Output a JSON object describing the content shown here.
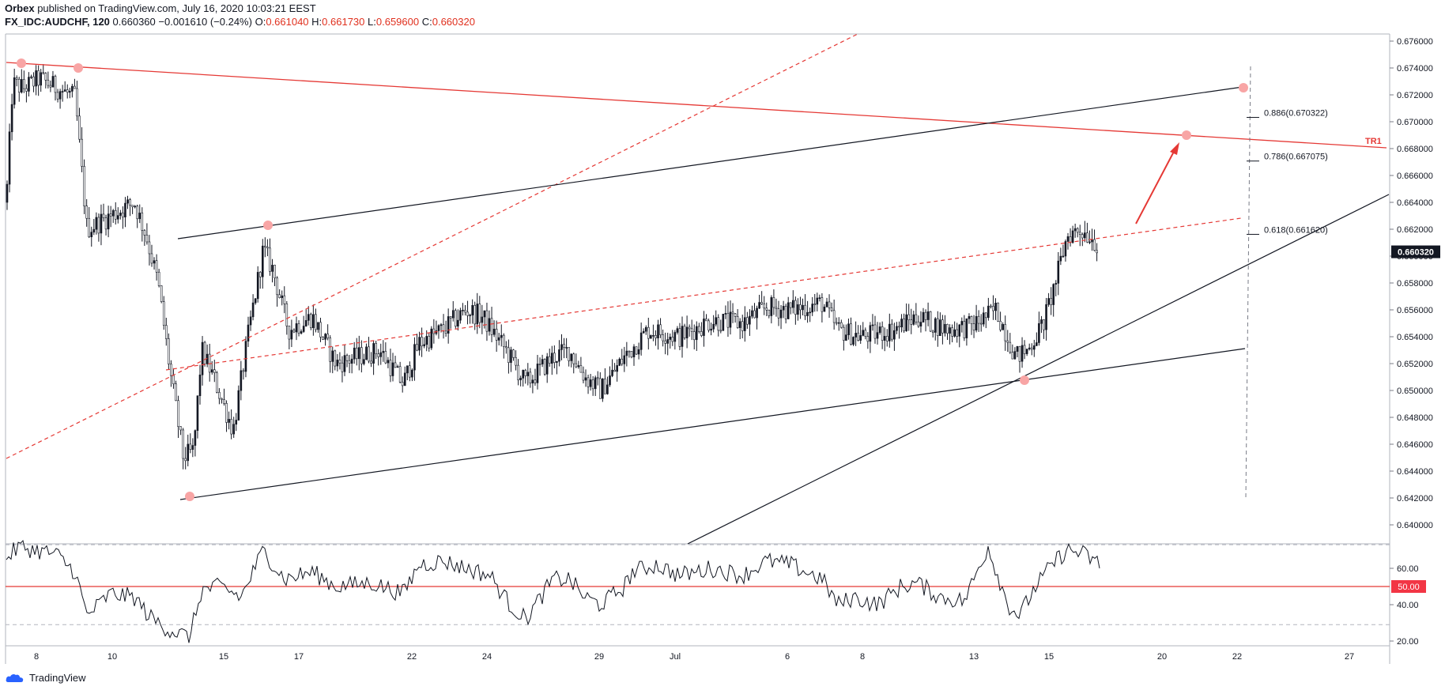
{
  "header": {
    "publisher": "Orbex",
    "published_text": "published on TradingView.com, July 16, 2020 10:03:21 EEST",
    "symbol": "FX_IDC:AUDCHF, 120",
    "last": "0.660360",
    "change": "−0.001610 (−0.24%)",
    "o_label": "O:",
    "o_value": "0.661040",
    "h_label": "H:",
    "h_value": "0.661730",
    "l_label": "L:",
    "l_value": "0.659600",
    "c_label": "C:",
    "c_value": "0.660320"
  },
  "footer": {
    "brand": "TradingView"
  },
  "colors": {
    "up": "#131722",
    "trend": "#e53935",
    "grid": "#787b86",
    "badge_dark": "#131722",
    "badge_red": "#f23645"
  },
  "chart_data": {
    "type": "candlestick",
    "symbol": "FX_IDC:AUDCHF",
    "interval": "120",
    "x_ticks": [
      "8",
      "10",
      "15",
      "17",
      "22",
      "24",
      "29",
      "Jul",
      "6",
      "8",
      "13",
      "15",
      "20",
      "22",
      "27"
    ],
    "price_axis": {
      "ylim": [
        0.6385,
        0.6768
      ],
      "ticks": [
        "0.676000",
        "0.674000",
        "0.672000",
        "0.670000",
        "0.668000",
        "0.666000",
        "0.664000",
        "0.662000",
        "0.660000",
        "0.658000",
        "0.656000",
        "0.654000",
        "0.652000",
        "0.650000",
        "0.648000",
        "0.646000",
        "0.644000",
        "0.642000",
        "0.640000"
      ]
    },
    "last_price_badge": "0.660320",
    "annotations": {
      "trendline_label": "TR1",
      "fib_levels": [
        {
          "label": "0.886(0.670322)",
          "price": 0.670322
        },
        {
          "label": "0.786(0.667075)",
          "price": 0.667075
        },
        {
          "label": "0.618(0.661620)",
          "price": 0.66162
        }
      ]
    },
    "rsi": {
      "ylim": [
        18,
        77
      ],
      "ticks": [
        "60.00",
        "40.00",
        "20.00"
      ],
      "level_badge": "50.00",
      "upper_band": 73,
      "lower_band": 29
    }
  }
}
